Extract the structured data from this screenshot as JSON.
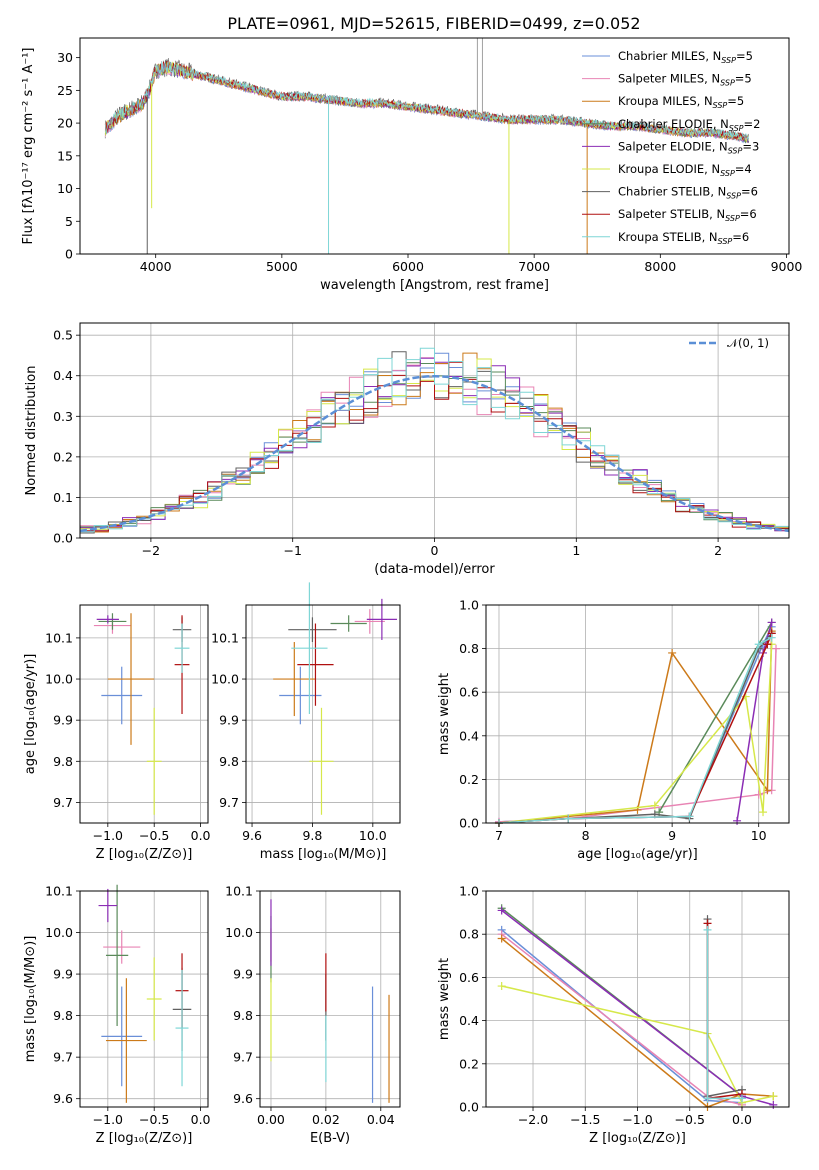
{
  "title": "PLATE=0961, MJD=52615, FIBERID=0499, z=0.052",
  "colors": [
    "#6a8fd8",
    "#e884b4",
    "#cc7a1a",
    "#5a8a5a",
    "#8b2db5",
    "#d6e84a",
    "#606060",
    "#b01010",
    "#7fd6d6"
  ],
  "chart_data": [
    {
      "type": "line",
      "panel": "spectrum",
      "xlabel": "wavelength [Angstrom, rest frame]",
      "ylabel": "Flux [fλ10⁻¹⁷ erg cm⁻² s⁻¹ A⁻¹]",
      "xlim": [
        3400,
        9020
      ],
      "ylim": [
        0,
        33
      ],
      "xticks": [
        4000,
        5000,
        6000,
        7000,
        8000,
        9000
      ],
      "yticks": [
        0,
        5,
        10,
        15,
        20,
        25,
        30
      ],
      "grid": false,
      "legend_position": "top-right",
      "legend": [
        {
          "label": "Chabrier MILES, N",
          "sub": "SSP",
          "eq": "=5"
        },
        {
          "label": "Salpeter MILES, N",
          "sub": "SSP",
          "eq": "=5"
        },
        {
          "label": "Kroupa MILES, N",
          "sub": "SSP",
          "eq": "=5"
        },
        {
          "label": "Chabrier ELODIE, N",
          "sub": "SSP",
          "eq": "=2"
        },
        {
          "label": "Salpeter ELODIE, N",
          "sub": "SSP",
          "eq": "=3"
        },
        {
          "label": "Kroupa ELODIE, N",
          "sub": "SSP",
          "eq": "=4"
        },
        {
          "label": "Chabrier STELIB, N",
          "sub": "SSP",
          "eq": "=6"
        },
        {
          "label": "Salpeter STELIB, N",
          "sub": "SSP",
          "eq": "=6"
        },
        {
          "label": "Kroupa STELIB, N",
          "sub": "SSP",
          "eq": "=6"
        }
      ],
      "continuum": {
        "x": [
          3600,
          3700,
          3800,
          3900,
          3950,
          4000,
          4100,
          4200,
          4300,
          4400,
          4500,
          4600,
          4700,
          4800,
          4900,
          5000,
          5200,
          5400,
          5600,
          5800,
          6000,
          6200,
          6400,
          6600,
          6800,
          7000,
          7200,
          7400,
          7600,
          7800,
          8000,
          8200,
          8400,
          8600,
          8700
        ],
        "y": [
          19,
          21,
          22,
          23,
          25,
          28,
          28.5,
          28,
          27.5,
          27,
          26.5,
          26,
          25.5,
          25,
          24.5,
          24,
          24,
          23.5,
          23,
          23,
          22.5,
          22,
          21.5,
          21,
          20.5,
          20.5,
          20.5,
          20,
          19.5,
          19.5,
          19,
          18.5,
          18.5,
          18,
          17.5
        ]
      },
      "dips": [
        {
          "x": 3933,
          "y": 0,
          "series": 6
        },
        {
          "x": 3968,
          "y": 7,
          "series": 5
        },
        {
          "x": 5370,
          "y": 0,
          "series": 8
        },
        {
          "x": 6800,
          "y": 0,
          "series": 5
        },
        {
          "x": 7420,
          "y": 0,
          "series": 2
        }
      ],
      "spikes": [
        {
          "x": 6550,
          "y": 33
        },
        {
          "x": 6590,
          "y": 33
        }
      ]
    },
    {
      "type": "histogram",
      "panel": "residuals",
      "xlabel": "(data-model)/error",
      "ylabel": "Normed distribution",
      "xlim": [
        -2.5,
        2.5
      ],
      "ylim": [
        0,
        0.53
      ],
      "xticks": [
        -2,
        -1,
        0,
        1,
        2
      ],
      "yticks": [
        0.0,
        0.1,
        0.2,
        0.3,
        0.4,
        0.5
      ],
      "grid": true,
      "legend_position": "top-right",
      "legend_label": "𝒩(0, 1)",
      "reference_curve": "gaussian mean 0 sigma 1",
      "bin_width": 0.1,
      "bin_start": -2.5
    },
    {
      "type": "errorbar",
      "panel": "age-vs-metallicity",
      "xlabel": "Z [log₁₀(Z/Z⊙)]",
      "ylabel": "age  [log₁₀(age/yr)]",
      "xlim": [
        -1.3,
        0.08
      ],
      "ylim": [
        9.65,
        10.18
      ],
      "xticks": [
        -1.0,
        -0.5,
        0.0
      ],
      "yticks": [
        9.7,
        9.8,
        9.9,
        10.0,
        10.1
      ],
      "grid": true,
      "points": [
        {
          "series": 0,
          "x": -0.85,
          "y": 9.96,
          "xerr": 0.22,
          "yerr": 0.07
        },
        {
          "series": 1,
          "x": -0.95,
          "y": 10.13,
          "xerr": 0.2,
          "yerr": 0.02
        },
        {
          "series": 2,
          "x": -0.75,
          "y": 10.0,
          "xerr": 0.25,
          "yerr": 0.16
        },
        {
          "series": 3,
          "x": -0.95,
          "y": 10.14,
          "xerr": 0.15,
          "yerr": 0.02
        },
        {
          "series": 4,
          "x": -1.0,
          "y": 10.145,
          "xerr": 0.12,
          "yerr": 0.01
        },
        {
          "series": 5,
          "x": -0.5,
          "y": 9.8,
          "xerr": 0.08,
          "yerr": 0.13
        },
        {
          "series": 6,
          "x": -0.2,
          "y": 10.12,
          "xerr": 0.1,
          "yerr": 0.03
        },
        {
          "series": 7,
          "x": -0.2,
          "y": 10.035,
          "xerr": 0.08,
          "yerr": 0.12
        },
        {
          "series": 8,
          "x": -0.2,
          "y": 10.075,
          "xerr": 0.08,
          "yerr": 0.06
        }
      ]
    },
    {
      "type": "errorbar",
      "panel": "age-vs-mass",
      "xlabel": "mass [log₁₀(M/M⊙)]",
      "ylabel": "",
      "xlim": [
        9.58,
        10.09
      ],
      "ylim": [
        9.65,
        10.18
      ],
      "xticks": [
        9.6,
        9.8,
        10.0
      ],
      "yticks": [
        9.7,
        9.8,
        9.9,
        10.0,
        10.1
      ],
      "grid": true,
      "points": [
        {
          "series": 0,
          "x": 9.76,
          "y": 9.96,
          "xerr": 0.07,
          "yerr": 0.07
        },
        {
          "series": 1,
          "x": 9.99,
          "y": 10.14,
          "xerr": 0.05,
          "yerr": 0.03
        },
        {
          "series": 2,
          "x": 9.74,
          "y": 10.0,
          "xerr": 0.07,
          "yerr": 0.09
        },
        {
          "series": 3,
          "x": 9.92,
          "y": 10.135,
          "xerr": 0.06,
          "yerr": 0.02
        },
        {
          "series": 4,
          "x": 10.03,
          "y": 10.145,
          "xerr": 0.05,
          "yerr": 0.05
        },
        {
          "series": 5,
          "x": 9.83,
          "y": 9.8,
          "xerr": 0.04,
          "yerr": 0.13
        },
        {
          "series": 6,
          "x": 9.8,
          "y": 10.12,
          "xerr": 0.08,
          "yerr": 0.03
        },
        {
          "series": 7,
          "x": 9.81,
          "y": 10.035,
          "xerr": 0.06,
          "yerr": 0.1
        },
        {
          "series": 8,
          "x": 9.79,
          "y": 10.075,
          "xerr": 0.06,
          "yerr": 0.16
        }
      ]
    },
    {
      "type": "line",
      "panel": "massweight-vs-age",
      "xlabel": "age  [log₁₀(age/yr)]",
      "ylabel": "mass weight",
      "xlim": [
        6.85,
        10.35
      ],
      "ylim": [
        0,
        1.0
      ],
      "xticks": [
        7,
        8,
        9,
        10
      ],
      "yticks": [
        0.0,
        0.2,
        0.4,
        0.6,
        0.8,
        1.0
      ],
      "grid": true,
      "series": [
        {
          "series": 0,
          "x": [
            7.0,
            7.8,
            9.2,
            10.05,
            10.15
          ],
          "y": [
            0.005,
            0.02,
            0.03,
            0.82,
            0.9
          ]
        },
        {
          "series": 1,
          "x": [
            7.0,
            7.8,
            10.0,
            10.15,
            10.2
          ],
          "y": [
            0.005,
            0.02,
            0.13,
            0.15,
            0.8
          ]
        },
        {
          "series": 2,
          "x": [
            7.0,
            8.6,
            9.0,
            10.1,
            10.15
          ],
          "y": [
            0.0,
            0.06,
            0.78,
            0.15,
            0.88
          ]
        },
        {
          "series": 3,
          "x": [
            8.85,
            10.15
          ],
          "y": [
            0.05,
            0.92
          ]
        },
        {
          "series": 4,
          "x": [
            9.75,
            10.05,
            10.15
          ],
          "y": [
            0.01,
            0.78,
            0.92
          ]
        },
        {
          "series": 5,
          "x": [
            7.0,
            8.8,
            9.85,
            10.05,
            10.15
          ],
          "y": [
            0.0,
            0.08,
            0.58,
            0.05,
            0.82
          ]
        },
        {
          "series": 6,
          "x": [
            7.0,
            7.8,
            8.8,
            9.2,
            10.0,
            10.15
          ],
          "y": [
            0.0,
            0.02,
            0.04,
            0.02,
            0.8,
            0.87
          ]
        },
        {
          "series": 7,
          "x": [
            7.0,
            7.8,
            9.2,
            10.1,
            10.15
          ],
          "y": [
            0.0,
            0.02,
            0.03,
            0.82,
            0.87
          ]
        },
        {
          "series": 8,
          "x": [
            7.0,
            7.8,
            9.2,
            10.0,
            10.15
          ],
          "y": [
            0.0,
            0.02,
            0.03,
            0.82,
            0.85
          ]
        }
      ]
    },
    {
      "type": "errorbar",
      "panel": "mass-vs-metallicity",
      "xlabel": "Z [log₁₀(Z/Z⊙)]",
      "ylabel": "mass [log₁₀(M/M⊙)]",
      "xlim": [
        -1.3,
        0.08
      ],
      "ylim": [
        9.58,
        10.1
      ],
      "xticks": [
        -1.0,
        -0.5,
        0.0
      ],
      "yticks": [
        9.6,
        9.7,
        9.8,
        9.9,
        10.0,
        10.1
      ],
      "grid": true,
      "points": [
        {
          "series": 0,
          "x": -0.85,
          "y": 9.75,
          "xerr": 0.22,
          "yerr": 0.12
        },
        {
          "series": 1,
          "x": -0.85,
          "y": 9.965,
          "xerr": 0.2,
          "yerr": 0.04
        },
        {
          "series": 2,
          "x": -0.8,
          "y": 9.74,
          "xerr": 0.22,
          "yerr": 0.15
        },
        {
          "series": 3,
          "x": -0.9,
          "y": 9.945,
          "xerr": 0.12,
          "yerr": 0.17
        },
        {
          "series": 4,
          "x": -1.0,
          "y": 10.065,
          "xerr": 0.1,
          "yerr": 0.04
        },
        {
          "series": 5,
          "x": -0.5,
          "y": 9.84,
          "xerr": 0.08,
          "yerr": 0.1
        },
        {
          "series": 6,
          "x": -0.2,
          "y": 9.815,
          "xerr": 0.1,
          "yerr": 0.1
        },
        {
          "series": 7,
          "x": -0.2,
          "y": 9.86,
          "xerr": 0.07,
          "yerr": 0.09
        },
        {
          "series": 8,
          "x": -0.2,
          "y": 9.77,
          "xerr": 0.07,
          "yerr": 0.14
        }
      ]
    },
    {
      "type": "errorbar",
      "panel": "mass-vs-extinction",
      "xlabel": "E(B-V)",
      "ylabel": "",
      "xlim": [
        -0.004,
        0.047
      ],
      "ylim": [
        9.58,
        10.1
      ],
      "xticks": [
        0.0,
        0.02,
        0.04
      ],
      "yticks": [
        9.6,
        9.7,
        9.8,
        9.9,
        10.0,
        10.1
      ],
      "grid": true,
      "points": [
        {
          "series": 0,
          "x": 0.037,
          "y": 9.73,
          "xerr": 0.0,
          "yerr": 0.14
        },
        {
          "series": 1,
          "x": 0.0,
          "y": 9.97,
          "xerr": 0.0,
          "yerr": 0.04
        },
        {
          "series": 2,
          "x": 0.043,
          "y": 9.72,
          "xerr": 0.0,
          "yerr": 0.13
        },
        {
          "series": 3,
          "x": 0.0,
          "y": 9.96,
          "xerr": 0.0,
          "yerr": 0.08
        },
        {
          "series": 4,
          "x": 0.0,
          "y": 10.0,
          "xerr": 0.0,
          "yerr": 0.08
        },
        {
          "series": 5,
          "x": 0.0,
          "y": 9.79,
          "xerr": 0.0,
          "yerr": 0.1
        },
        {
          "series": 6,
          "x": 0.02,
          "y": 9.82,
          "xerr": 0.0,
          "yerr": 0.08
        },
        {
          "series": 7,
          "x": 0.02,
          "y": 9.88,
          "xerr": 0.0,
          "yerr": 0.07
        },
        {
          "series": 8,
          "x": 0.02,
          "y": 9.72,
          "xerr": 0.0,
          "yerr": 0.08
        }
      ]
    },
    {
      "type": "line",
      "panel": "massweight-vs-metallicity",
      "xlabel": "Z [log₁₀(Z/Z⊙)]",
      "ylabel": "mass weight",
      "xlim": [
        -2.45,
        0.45
      ],
      "ylim": [
        0,
        1.0
      ],
      "xticks": [
        -2.0,
        -1.5,
        -1.0,
        -0.5,
        0.0
      ],
      "yticks": [
        0.0,
        0.2,
        0.4,
        0.6,
        0.8,
        1.0
      ],
      "grid": true,
      "series": [
        {
          "series": 0,
          "x": [
            -2.3,
            -0.33,
            0.0
          ],
          "y": [
            0.82,
            0.03,
            0.02
          ]
        },
        {
          "series": 1,
          "x": [
            -2.3,
            -0.33,
            0.0
          ],
          "y": [
            0.8,
            0.05,
            0.01
          ]
        },
        {
          "series": 2,
          "x": [
            -2.3,
            -0.33,
            0.0,
            0.3
          ],
          "y": [
            0.78,
            0.0,
            0.06,
            0.05
          ]
        },
        {
          "series": 3,
          "x": [
            -2.3,
            0.0
          ],
          "y": [
            0.92,
            0.05
          ]
        },
        {
          "series": 4,
          "x": [
            -2.3,
            0.0,
            0.3
          ],
          "y": [
            0.91,
            0.05,
            0.01
          ]
        },
        {
          "series": 5,
          "x": [
            -2.3,
            -0.33,
            0.0,
            0.3
          ],
          "y": [
            0.56,
            0.34,
            0.02,
            0.05
          ]
        },
        {
          "series": 6,
          "x": [
            -0.33,
            -0.33,
            0.0
          ],
          "y": [
            0.87,
            0.05,
            0.08
          ]
        },
        {
          "series": 7,
          "x": [
            -0.33,
            -0.33,
            0.0
          ],
          "y": [
            0.85,
            0.04,
            0.06
          ]
        },
        {
          "series": 8,
          "x": [
            -0.33,
            -0.33,
            0.0
          ],
          "y": [
            0.82,
            0.04,
            0.04
          ]
        }
      ]
    }
  ]
}
